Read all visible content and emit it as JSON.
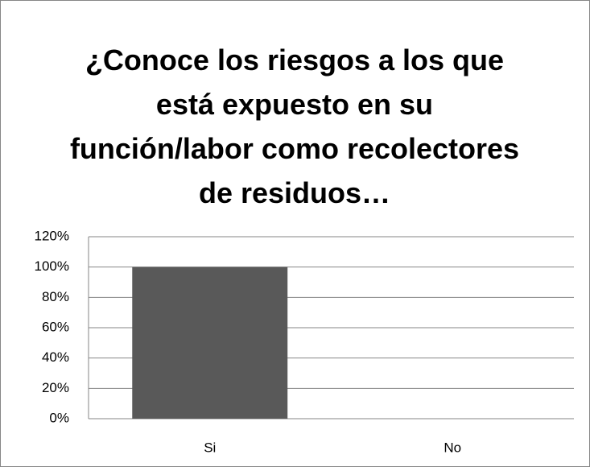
{
  "chart_data": {
    "type": "bar",
    "title": "¿Conoce los riesgos a los que está expuesto en su función/labor como recolectores de residuos…",
    "categories": [
      "Si",
      "No"
    ],
    "values": [
      100,
      0
    ],
    "color": "#595959",
    "ylim": [
      0,
      120
    ],
    "yticks": [
      {
        "value": 0,
        "label": "0%"
      },
      {
        "value": 20,
        "label": "20%"
      },
      {
        "value": 40,
        "label": "40%"
      },
      {
        "value": 60,
        "label": "60%"
      },
      {
        "value": 80,
        "label": "80%"
      },
      {
        "value": 100,
        "label": "100%"
      },
      {
        "value": 120,
        "label": "120%"
      }
    ],
    "grid": true
  }
}
